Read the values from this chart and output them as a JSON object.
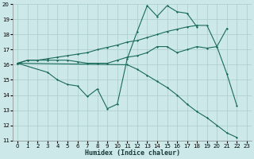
{
  "bg_color": "#cce8e8",
  "grid_color": "#aacccc",
  "line_color": "#1a6b5a",
  "xlabel": "Humidex (Indice chaleur)",
  "xlim": [
    -0.5,
    23.5
  ],
  "ylim": [
    11,
    20
  ],
  "xticks": [
    0,
    1,
    2,
    3,
    4,
    5,
    6,
    7,
    8,
    9,
    10,
    11,
    12,
    13,
    14,
    15,
    16,
    17,
    18,
    19,
    20,
    21,
    22,
    23
  ],
  "yticks": [
    11,
    12,
    13,
    14,
    15,
    16,
    17,
    18,
    19,
    20
  ],
  "line1_x": [
    0,
    1,
    2,
    3,
    4,
    5,
    6,
    7,
    8,
    9,
    10,
    11,
    12,
    13,
    14,
    15,
    16,
    17,
    18,
    19,
    20,
    21
  ],
  "line1_y": [
    16.1,
    16.3,
    16.3,
    16.4,
    16.5,
    16.6,
    16.7,
    16.8,
    17.0,
    17.15,
    17.3,
    17.5,
    17.6,
    17.8,
    18.0,
    18.2,
    18.35,
    18.5,
    18.6,
    18.6,
    17.2,
    18.4
  ],
  "line2_x": [
    0,
    1,
    2,
    3,
    4,
    5,
    6,
    7,
    8,
    9,
    10,
    11,
    12,
    13,
    14,
    15,
    16,
    17,
    18,
    19,
    20,
    21,
    22
  ],
  "line2_y": [
    16.1,
    16.3,
    16.3,
    16.3,
    16.3,
    16.3,
    16.2,
    16.1,
    16.1,
    16.1,
    16.3,
    16.5,
    16.6,
    16.8,
    17.2,
    17.2,
    16.8,
    17.0,
    17.2,
    17.1,
    17.2,
    15.4,
    13.3
  ],
  "line3_x": [
    0,
    3,
    4,
    5,
    6,
    7,
    8,
    9,
    10,
    11,
    12,
    13,
    14,
    15,
    16,
    17,
    18
  ],
  "line3_y": [
    16.1,
    15.5,
    15.0,
    14.7,
    14.6,
    13.9,
    14.4,
    13.1,
    13.4,
    16.4,
    18.2,
    19.9,
    19.2,
    19.9,
    19.5,
    19.4,
    18.5
  ],
  "line4_x": [
    0,
    11,
    12,
    13,
    14,
    15,
    16,
    17,
    18,
    19,
    20,
    21,
    22
  ],
  "line4_y": [
    16.1,
    16.0,
    15.7,
    15.3,
    14.9,
    14.5,
    14.0,
    13.4,
    12.9,
    12.5,
    12.0,
    11.5,
    11.2
  ]
}
